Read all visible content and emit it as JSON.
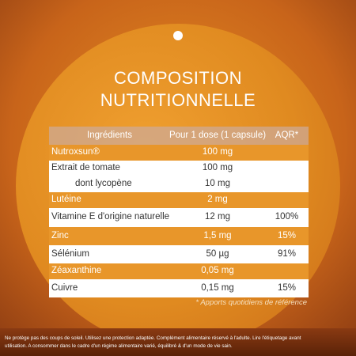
{
  "title": [
    "COMPOSITION",
    "NUTRITIONNELLE"
  ],
  "table": {
    "header": [
      "Ingrédients",
      "Pour 1 dose (1 capsule)",
      "AQR*"
    ],
    "rows": [
      [
        "Nutroxsun®",
        "100 mg"
      ],
      [
        "Extrait de tomate",
        "100 mg"
      ],
      [
        "dont lycopène",
        "10 mg"
      ],
      [
        "Lutéine",
        "2 mg"
      ],
      [
        "Vitamine E d'origine naturelle",
        "12 mg",
        "100%"
      ],
      [
        "Zinc",
        "1,5 mg",
        "15%"
      ],
      [
        "Sélénium",
        "50 µg",
        "91%"
      ],
      [
        "Zéaxanthine",
        "0,05 mg"
      ],
      [
        "Cuivre",
        "0,15 mg",
        "15%"
      ]
    ],
    "footnote": "* Apports quotidiens de référence"
  },
  "disclaimer": [
    "Ne protège pas des coups de soleil. Utilisez une protection adaptée. Complément alimentaire réservé à l'adulte. Lire l'étiquetage avant",
    "utilisation. A consommer dans le cadre d'un régime alimentaire varié, équilibré & d'un mode de vie sain."
  ]
}
